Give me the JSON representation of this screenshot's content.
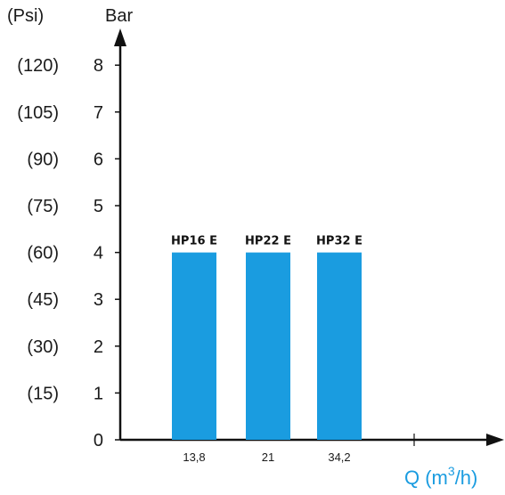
{
  "chart_data": {
    "type": "bar",
    "categories": [
      "13,8",
      "21",
      "34,2"
    ],
    "bar_labels": [
      "HP16 E",
      "HP22 E",
      "HP32 E"
    ],
    "values": [
      4,
      4,
      4
    ],
    "ylabel": "Bar",
    "ylabel_secondary": "(Psi)",
    "xlabel_prefix": "Q (m",
    "xlabel_sup": "3",
    "xlabel_suffix": "/h)",
    "yticks": [
      0,
      1,
      2,
      3,
      4,
      5,
      6,
      7,
      8
    ],
    "yticks_psi": [
      "(15)",
      "(30)",
      "(45)",
      "(60)",
      "(75)",
      "(90)",
      "(105)",
      "(120)"
    ],
    "ylim": [
      0,
      8
    ],
    "grid": false,
    "colors": {
      "bar": "#1a9ce0",
      "axis": "#111111",
      "xlabel": "#1a9ce0"
    }
  }
}
